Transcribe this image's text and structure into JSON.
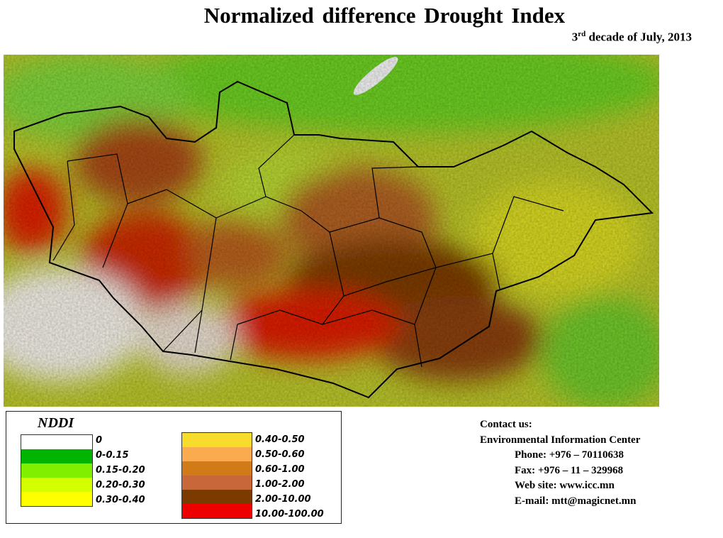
{
  "header": {
    "title": "Normalized difference Drought Index",
    "subtitle_sup": "rd",
    "subtitle_prefix": "3",
    "subtitle_rest": " decade of July, 2013"
  },
  "legend": {
    "title": "NDDI",
    "left": [
      {
        "label": "0",
        "color": "#ffffff"
      },
      {
        "label": "0-0.15",
        "color": "#00b400"
      },
      {
        "label": "0.15-0.20",
        "color": "#80f000"
      },
      {
        "label": "0.20-0.30",
        "color": "#d4ff00"
      },
      {
        "label": "0.30-0.40",
        "color": "#ffff00"
      }
    ],
    "right": [
      {
        "label": "0.40-0.50",
        "color": "#f7dc2c"
      },
      {
        "label": "0.50-0.60",
        "color": "#fbab4f"
      },
      {
        "label": "0.60-1.00",
        "color": "#d07a18"
      },
      {
        "label": "1.00-2.00",
        "color": "#c8683a"
      },
      {
        "label": "2.00-10.00",
        "color": "#7a3a00"
      },
      {
        "label": "10.00-100.00",
        "color": "#ee0000"
      }
    ]
  },
  "contact": {
    "heading": "Contact us:",
    "org": "Environmental Information Center",
    "phone": "Phone: +976 – 70110638",
    "fax": "Fax: +976 – 11 – 329968",
    "web": "Web site: www.icc.mn",
    "email": "E-mail: mtt@magicnet.mn"
  }
}
